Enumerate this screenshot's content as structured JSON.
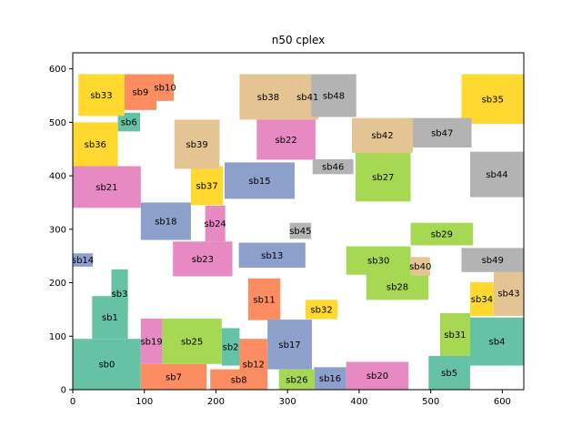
{
  "chart_data": {
    "type": "block-layout",
    "title": "n50 cplex",
    "xlim": [
      0,
      630
    ],
    "ylim": [
      0,
      630
    ],
    "xticks": [
      0,
      100,
      200,
      300,
      400,
      500,
      600
    ],
    "yticks": [
      0,
      100,
      200,
      300,
      400,
      500,
      600
    ],
    "xlabel": "",
    "ylabel": "",
    "blocks": [
      {
        "name": "sb0",
        "x": 0,
        "y": 0,
        "w": 95,
        "h": 95,
        "color": "#66c2a5"
      },
      {
        "name": "sb1",
        "x": 27,
        "y": 95,
        "w": 50,
        "h": 80,
        "color": "#66c2a5"
      },
      {
        "name": "sb2",
        "x": 208,
        "y": 45,
        "w": 25,
        "h": 70,
        "color": "#66c2a5"
      },
      {
        "name": "sb3",
        "x": 54,
        "y": 135,
        "w": 23,
        "h": 90,
        "color": "#66c2a5"
      },
      {
        "name": "sb4",
        "x": 555,
        "y": 45,
        "w": 75,
        "h": 90,
        "color": "#66c2a5"
      },
      {
        "name": "sb5",
        "x": 497,
        "y": 0,
        "w": 58,
        "h": 63,
        "color": "#66c2a5"
      },
      {
        "name": "sb6",
        "x": 63,
        "y": 483,
        "w": 31,
        "h": 35,
        "color": "#66c2a5"
      },
      {
        "name": "sb7",
        "x": 95,
        "y": 0,
        "w": 92,
        "h": 48,
        "color": "#fc8d62"
      },
      {
        "name": "sb8",
        "x": 192,
        "y": 0,
        "w": 80,
        "h": 38,
        "color": "#fc8d62"
      },
      {
        "name": "sb9",
        "x": 72,
        "y": 523,
        "w": 45,
        "h": 67,
        "color": "#fc8d62"
      },
      {
        "name": "sb10",
        "x": 117,
        "y": 540,
        "w": 24,
        "h": 50,
        "color": "#fc8d62"
      },
      {
        "name": "sb11",
        "x": 245,
        "y": 130,
        "w": 45,
        "h": 78,
        "color": "#fc8d62"
      },
      {
        "name": "sb12",
        "x": 233,
        "y": 0,
        "w": 39,
        "h": 95,
        "color": "#fc8d62"
      },
      {
        "name": "sb13",
        "x": 232,
        "y": 228,
        "w": 93,
        "h": 47,
        "color": "#8da0cb"
      },
      {
        "name": "sb14",
        "x": 0,
        "y": 230,
        "w": 28,
        "h": 25,
        "color": "#8da0cb"
      },
      {
        "name": "sb15",
        "x": 212,
        "y": 357,
        "w": 98,
        "h": 68,
        "color": "#8da0cb"
      },
      {
        "name": "sb16",
        "x": 337,
        "y": 0,
        "w": 45,
        "h": 42,
        "color": "#8da0cb"
      },
      {
        "name": "sb17",
        "x": 272,
        "y": 38,
        "w": 62,
        "h": 93,
        "color": "#8da0cb"
      },
      {
        "name": "sb18",
        "x": 95,
        "y": 280,
        "w": 70,
        "h": 70,
        "color": "#8da0cb"
      },
      {
        "name": "sb19",
        "x": 95,
        "y": 48,
        "w": 30,
        "h": 85,
        "color": "#e78ac3"
      },
      {
        "name": "sb20",
        "x": 382,
        "y": 0,
        "w": 87,
        "h": 52,
        "color": "#e78ac3"
      },
      {
        "name": "sb21",
        "x": 0,
        "y": 340,
        "w": 95,
        "h": 78,
        "color": "#e78ac3"
      },
      {
        "name": "sb22",
        "x": 257,
        "y": 430,
        "w": 82,
        "h": 75,
        "color": "#e78ac3"
      },
      {
        "name": "sb23",
        "x": 140,
        "y": 212,
        "w": 83,
        "h": 65,
        "color": "#e78ac3"
      },
      {
        "name": "sb24",
        "x": 185,
        "y": 277,
        "w": 28,
        "h": 67,
        "color": "#e78ac3"
      },
      {
        "name": "sb25",
        "x": 125,
        "y": 48,
        "w": 83,
        "h": 85,
        "color": "#a6d854"
      },
      {
        "name": "sb26",
        "x": 288,
        "y": 0,
        "w": 50,
        "h": 38,
        "color": "#a6d854"
      },
      {
        "name": "sb27",
        "x": 395,
        "y": 352,
        "w": 77,
        "h": 92,
        "color": "#a6d854"
      },
      {
        "name": "sb28",
        "x": 410,
        "y": 168,
        "w": 87,
        "h": 48,
        "color": "#a6d854"
      },
      {
        "name": "sb29",
        "x": 472,
        "y": 270,
        "w": 87,
        "h": 42,
        "color": "#a6d854"
      },
      {
        "name": "sb30",
        "x": 382,
        "y": 215,
        "w": 90,
        "h": 53,
        "color": "#a6d854"
      },
      {
        "name": "sb31",
        "x": 513,
        "y": 63,
        "w": 42,
        "h": 80,
        "color": "#a6d854"
      },
      {
        "name": "sb32",
        "x": 325,
        "y": 132,
        "w": 45,
        "h": 36,
        "color": "#ffd92f"
      },
      {
        "name": "sb33",
        "x": 8,
        "y": 512,
        "w": 64,
        "h": 78,
        "color": "#ffd92f"
      },
      {
        "name": "sb34",
        "x": 555,
        "y": 138,
        "w": 33,
        "h": 63,
        "color": "#ffd92f"
      },
      {
        "name": "sb35",
        "x": 543,
        "y": 497,
        "w": 87,
        "h": 93,
        "color": "#ffd92f"
      },
      {
        "name": "sb36",
        "x": 0,
        "y": 418,
        "w": 63,
        "h": 82,
        "color": "#ffd92f"
      },
      {
        "name": "sb37",
        "x": 165,
        "y": 345,
        "w": 45,
        "h": 73,
        "color": "#ffd92f"
      },
      {
        "name": "sb38",
        "x": 233,
        "y": 505,
        "w": 80,
        "h": 85,
        "color": "#e5c494"
      },
      {
        "name": "sb39",
        "x": 142,
        "y": 413,
        "w": 63,
        "h": 92,
        "color": "#e5c494"
      },
      {
        "name": "sb40",
        "x": 472,
        "y": 213,
        "w": 27,
        "h": 35,
        "color": "#e5c494"
      },
      {
        "name": "sb41",
        "x": 313,
        "y": 505,
        "w": 30,
        "h": 85,
        "color": "#e5c494"
      },
      {
        "name": "sb42",
        "x": 390,
        "y": 443,
        "w": 85,
        "h": 65,
        "color": "#e5c494"
      },
      {
        "name": "sb43",
        "x": 588,
        "y": 138,
        "w": 42,
        "h": 85,
        "color": "#e5c494"
      },
      {
        "name": "sb44",
        "x": 555,
        "y": 360,
        "w": 75,
        "h": 85,
        "color": "#b3b3b3"
      },
      {
        "name": "sb45",
        "x": 303,
        "y": 282,
        "w": 30,
        "h": 30,
        "color": "#b3b3b3"
      },
      {
        "name": "sb46",
        "x": 335,
        "y": 403,
        "w": 57,
        "h": 28,
        "color": "#b3b3b3"
      },
      {
        "name": "sb47",
        "x": 475,
        "y": 453,
        "w": 82,
        "h": 55,
        "color": "#b3b3b3"
      },
      {
        "name": "sb48",
        "x": 333,
        "y": 510,
        "w": 63,
        "h": 80,
        "color": "#b3b3b3"
      },
      {
        "name": "sb49",
        "x": 543,
        "y": 220,
        "w": 87,
        "h": 45,
        "color": "#b3b3b3"
      }
    ]
  }
}
